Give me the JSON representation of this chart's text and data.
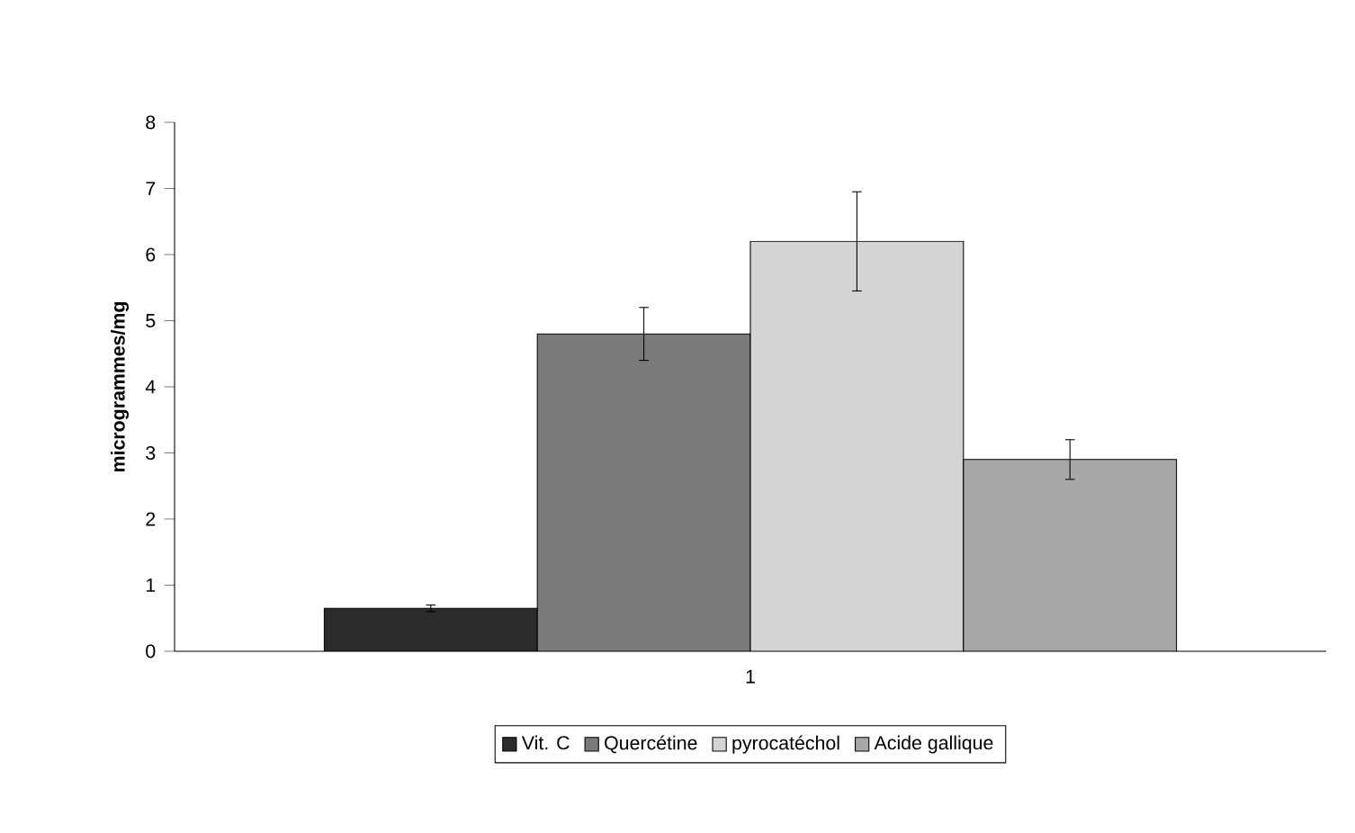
{
  "chart_data": {
    "type": "bar",
    "categories": [
      "1"
    ],
    "ylabel": "microgrammes/mg",
    "ylim": [
      0,
      8
    ],
    "yticks": [
      0,
      1,
      2,
      3,
      4,
      5,
      6,
      7,
      8
    ],
    "legend": "bottom",
    "series": [
      {
        "name": "Vit. C",
        "color": "#2b2b2b",
        "values": [
          0.65
        ],
        "errors": [
          0.05
        ]
      },
      {
        "name": "Quercétine",
        "color": "#7a7a7a",
        "values": [
          4.8
        ],
        "errors": [
          0.4
        ]
      },
      {
        "name": "pyrocatéchol",
        "color": "#d4d4d4",
        "values": [
          6.2
        ],
        "errors": [
          0.75
        ]
      },
      {
        "name": "Acide gallique",
        "color": "#a8a8a8",
        "values": [
          2.9
        ],
        "errors": [
          0.3
        ]
      }
    ]
  }
}
